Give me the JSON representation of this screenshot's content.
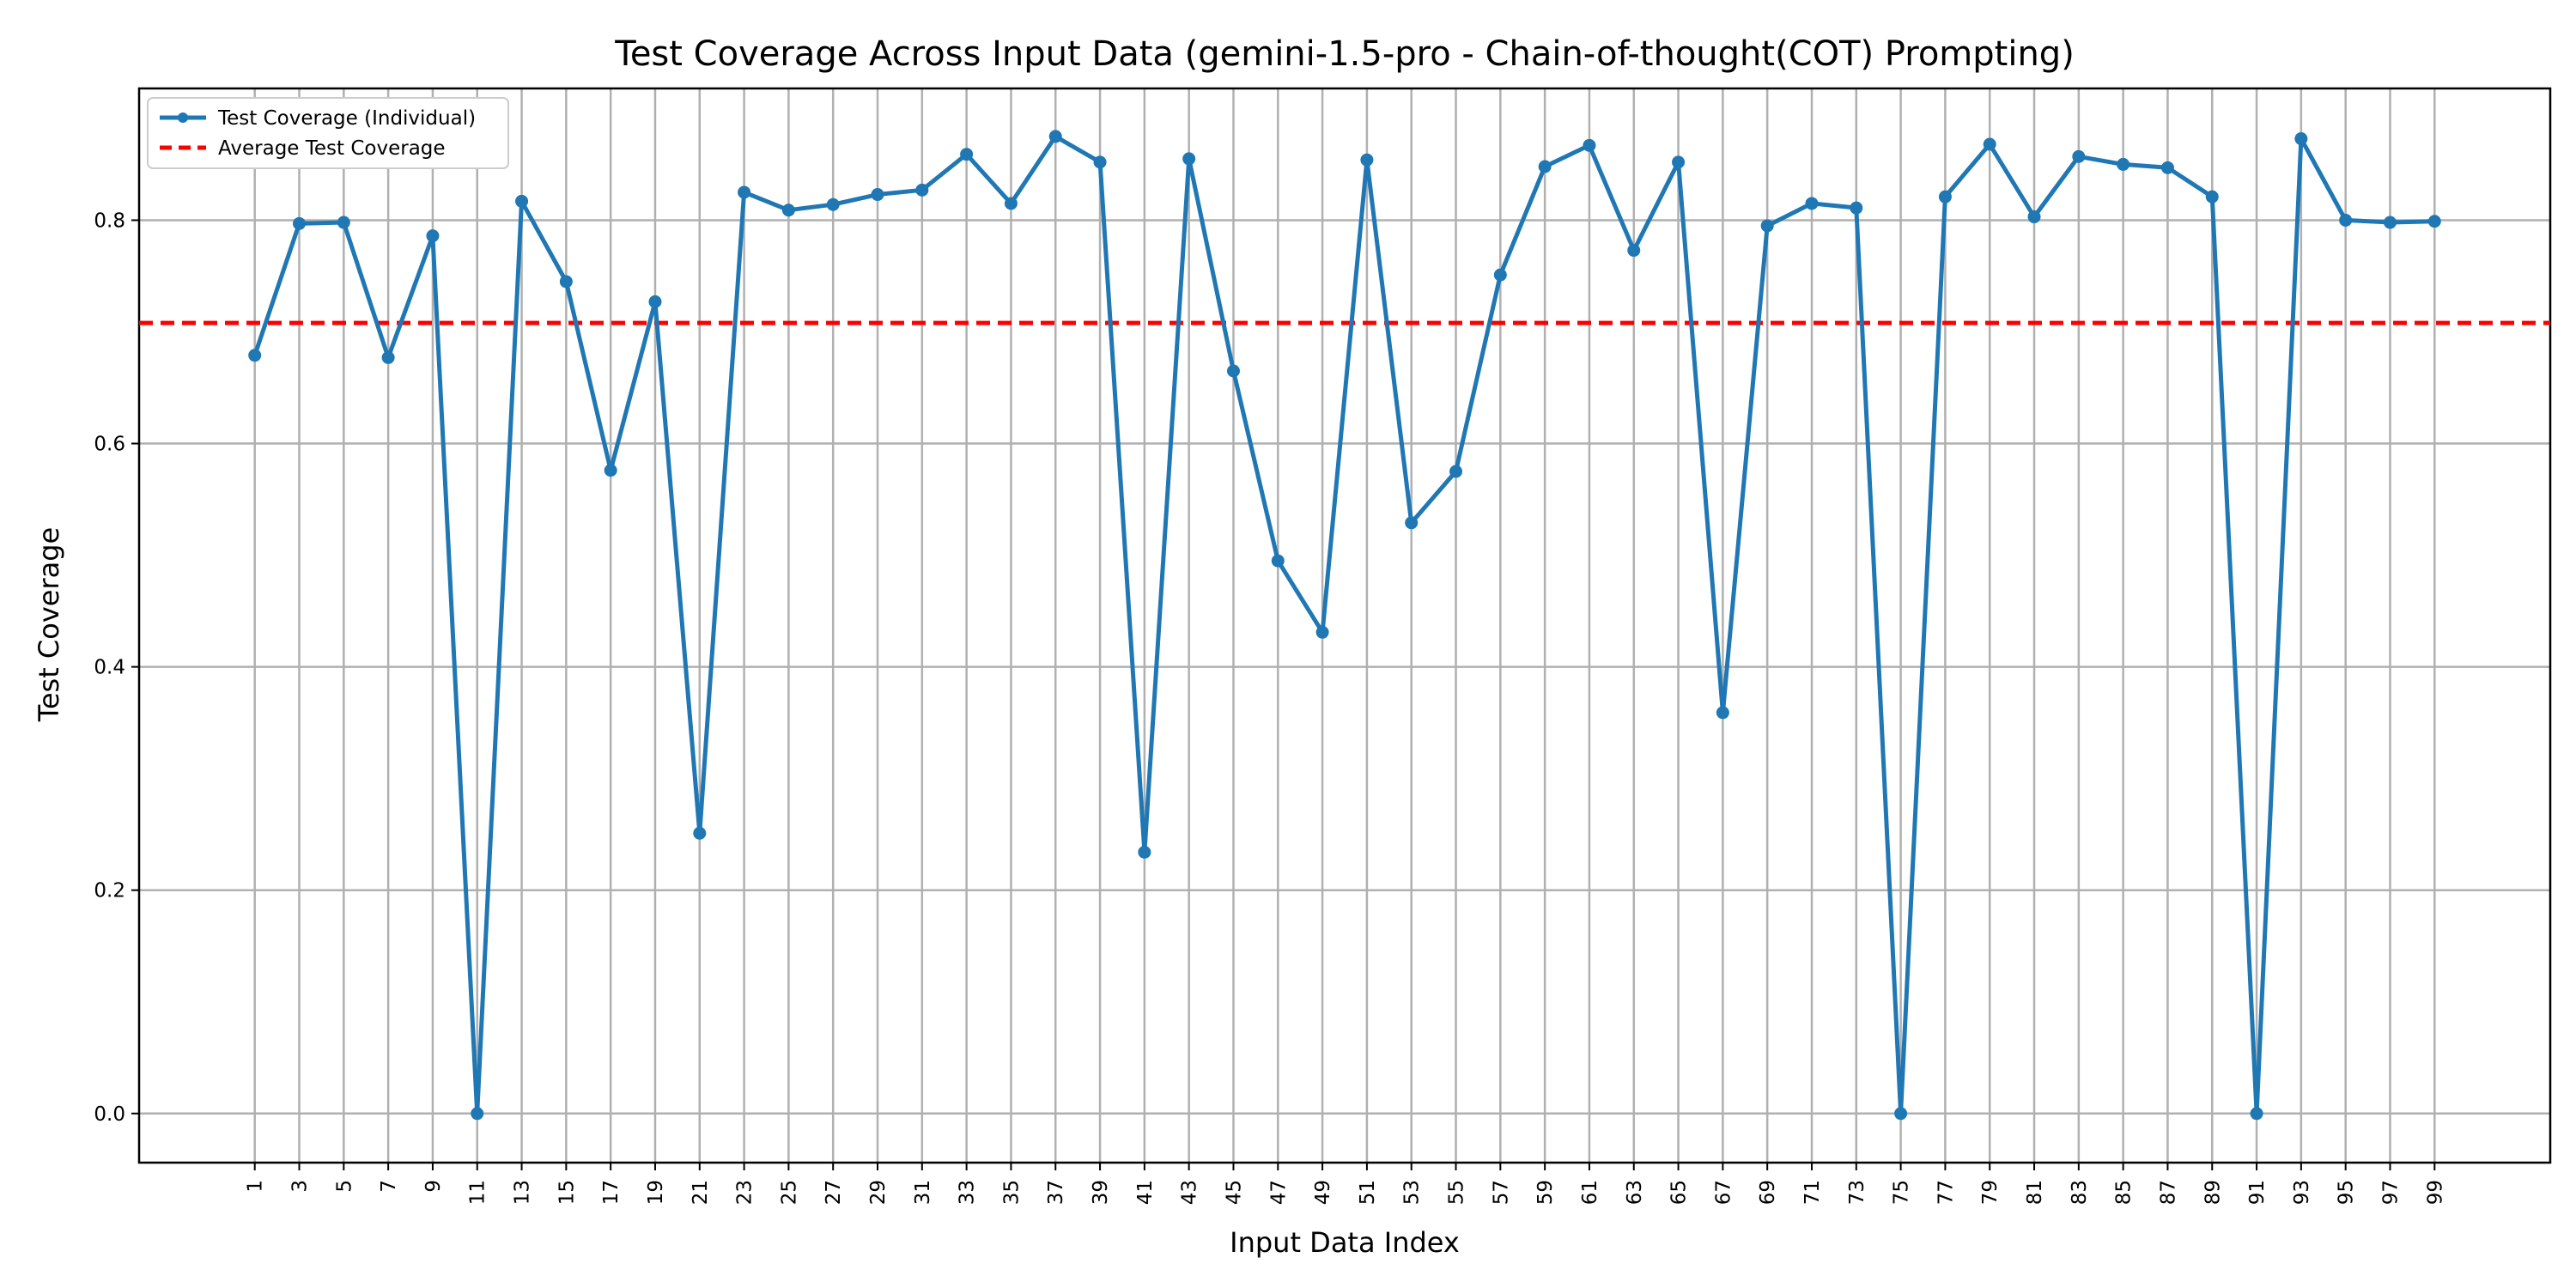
{
  "chart_data": {
    "type": "line",
    "title": "Test Coverage Across Input Data (gemini-1.5-pro - Chain-of-thought(COT) Prompting)",
    "xlabel": "Input Data Index",
    "ylabel": "Test Coverage",
    "xlim": [
      -4.2,
      104.2
    ],
    "ylim": [
      -0.044,
      0.918
    ],
    "grid": true,
    "legend_position": "top-left",
    "x_ticks": [
      1,
      3,
      5,
      7,
      9,
      11,
      13,
      15,
      17,
      19,
      21,
      23,
      25,
      27,
      29,
      31,
      33,
      35,
      37,
      39,
      41,
      43,
      45,
      47,
      49,
      51,
      53,
      55,
      57,
      59,
      61,
      63,
      65,
      67,
      69,
      71,
      73,
      75,
      77,
      79,
      81,
      83,
      85,
      87,
      89,
      91,
      93,
      95,
      97,
      99
    ],
    "y_ticks": [
      0.0,
      0.2,
      0.4,
      0.6,
      0.8
    ],
    "y_tick_labels": [
      "0.0",
      "0.2",
      "0.4",
      "0.6",
      "0.8"
    ],
    "series": [
      {
        "name": "Test Coverage (Individual)",
        "color": "#1f77b4",
        "marker": "circle",
        "x": [
          1,
          3,
          5,
          7,
          9,
          11,
          13,
          15,
          17,
          19,
          21,
          23,
          25,
          27,
          29,
          31,
          33,
          35,
          37,
          39,
          41,
          43,
          45,
          47,
          49,
          51,
          53,
          55,
          57,
          59,
          61,
          63,
          65,
          67,
          69,
          71,
          73,
          75,
          77,
          79,
          81,
          83,
          85,
          87,
          89,
          91,
          93,
          95,
          97,
          99
        ],
        "y": [
          0.679,
          0.797,
          0.798,
          0.677,
          0.786,
          0.0,
          0.817,
          0.745,
          0.576,
          0.727,
          0.251,
          0.825,
          0.809,
          0.814,
          0.823,
          0.827,
          0.859,
          0.815,
          0.875,
          0.852,
          0.234,
          0.855,
          0.665,
          0.495,
          0.431,
          0.854,
          0.529,
          0.575,
          0.751,
          0.848,
          0.867,
          0.773,
          0.852,
          0.359,
          0.795,
          0.815,
          0.811,
          0.0,
          0.821,
          0.868,
          0.803,
          0.857,
          0.85,
          0.847,
          0.821,
          0.0,
          0.873,
          0.8,
          0.798,
          0.799
        ]
      },
      {
        "name": "Average Test Coverage",
        "color": "#ff0000",
        "style": "dashed",
        "y": 0.708
      }
    ]
  }
}
